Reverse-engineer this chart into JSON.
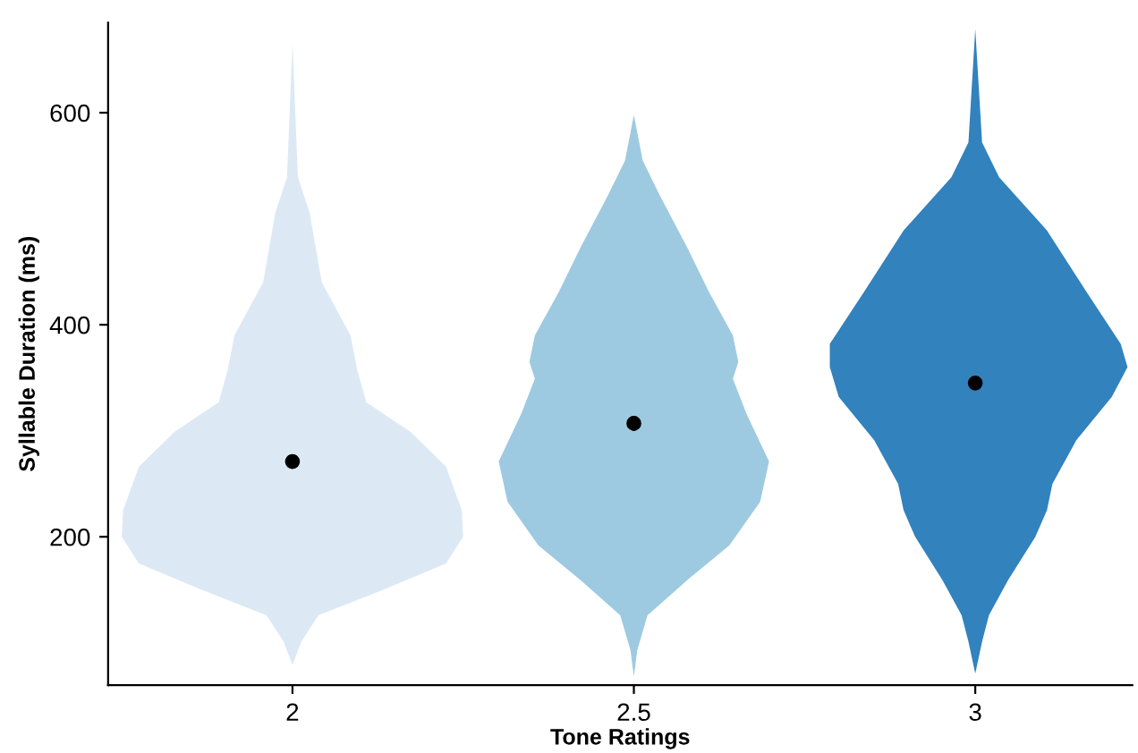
{
  "chart_data": {
    "type": "scatter",
    "xlabel": "Tone Ratings",
    "ylabel": "Syllable Duration (ms)",
    "xlim": [
      1.73,
      3.23
    ],
    "xticks": [
      2,
      2.5,
      3
    ],
    "ylim": [
      60,
      685
    ],
    "yticks": [
      200,
      400,
      600
    ],
    "grid": false,
    "legend": false,
    "series": [
      {
        "type": "area",
        "color": "#dce9f5",
        "x": [
          2.0,
          2.013,
          2.038,
          2.133,
          2.225,
          2.25,
          2.248,
          2.225,
          2.173,
          2.108,
          2.095,
          2.085,
          2.043,
          2.025,
          2.008,
          2.0,
          1.992,
          1.975,
          1.957,
          1.915,
          1.905,
          1.892,
          1.827,
          1.775,
          1.752,
          1.75,
          1.775,
          1.867,
          1.962,
          1.987
        ],
        "values": [
          79,
          101,
          126,
          150,
          175,
          200,
          225,
          266,
          299,
          327,
          357,
          390,
          440,
          506,
          539,
          666,
          539,
          506,
          440,
          390,
          357,
          327,
          299,
          266,
          225,
          200,
          175,
          150,
          126,
          101
        ]
      },
      {
        "type": "area",
        "color": "#9ecae1",
        "x": [
          2.5,
          2.505,
          2.52,
          2.578,
          2.64,
          2.685,
          2.698,
          2.665,
          2.645,
          2.653,
          2.645,
          2.61,
          2.578,
          2.538,
          2.513,
          2.5,
          2.487,
          2.462,
          2.422,
          2.39,
          2.355,
          2.347,
          2.355,
          2.335,
          2.302,
          2.315,
          2.36,
          2.422,
          2.48,
          2.495
        ],
        "values": [
          68,
          93,
          126,
          159,
          192,
          233,
          271,
          316,
          349,
          365,
          390,
          431,
          473,
          522,
          555,
          598,
          555,
          522,
          473,
          431,
          390,
          365,
          349,
          316,
          271,
          233,
          192,
          159,
          126,
          93
        ]
      },
      {
        "type": "area",
        "color": "#3182bd",
        "x": [
          3.0,
          3.01,
          3.02,
          3.048,
          3.088,
          3.105,
          3.113,
          3.148,
          3.2,
          3.223,
          3.213,
          3.163,
          3.105,
          3.035,
          3.01,
          3.0,
          2.99,
          2.965,
          2.895,
          2.837,
          2.787,
          2.787,
          2.8,
          2.852,
          2.887,
          2.895,
          2.912,
          2.952,
          2.98,
          2.99
        ],
        "values": [
          71,
          101,
          126,
          159,
          200,
          225,
          250,
          291,
          332,
          360,
          382,
          431,
          489,
          539,
          572,
          679,
          572,
          539,
          489,
          431,
          382,
          360,
          332,
          291,
          250,
          225,
          200,
          159,
          126,
          101
        ]
      },
      {
        "color": "#000000",
        "marker": "circle",
        "x": [
          2,
          2.5,
          3
        ],
        "values": [
          271,
          307,
          345
        ],
        "errors": [
          null,
          7,
          6
        ]
      }
    ]
  }
}
